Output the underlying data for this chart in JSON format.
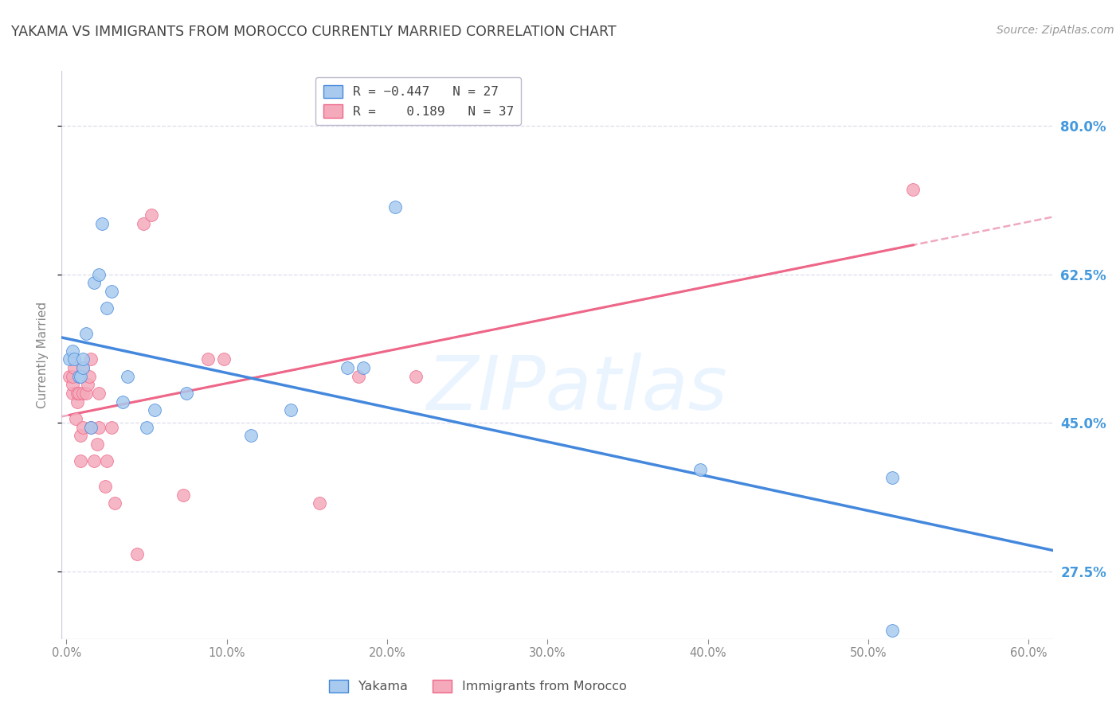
{
  "title": "YAKAMA VS IMMIGRANTS FROM MOROCCO CURRENTLY MARRIED CORRELATION CHART",
  "source": "Source: ZipAtlas.com",
  "ylabel": "Currently Married",
  "ytick_labels": [
    "27.5%",
    "45.0%",
    "62.5%",
    "80.0%"
  ],
  "ytick_vals": [
    0.275,
    0.45,
    0.625,
    0.8
  ],
  "xlim": [
    -0.003,
    0.615
  ],
  "ylim": [
    0.195,
    0.865
  ],
  "watermark": "ZIPatlas",
  "blue_x": [
    0.002,
    0.004,
    0.005,
    0.008,
    0.009,
    0.01,
    0.01,
    0.012,
    0.015,
    0.017,
    0.02,
    0.022,
    0.025,
    0.028,
    0.035,
    0.038,
    0.05,
    0.055,
    0.075,
    0.115,
    0.14,
    0.175,
    0.185,
    0.205,
    0.395,
    0.515,
    0.515
  ],
  "blue_y": [
    0.525,
    0.535,
    0.525,
    0.505,
    0.505,
    0.515,
    0.525,
    0.555,
    0.445,
    0.615,
    0.625,
    0.685,
    0.585,
    0.605,
    0.475,
    0.505,
    0.445,
    0.465,
    0.485,
    0.435,
    0.465,
    0.515,
    0.515,
    0.705,
    0.395,
    0.385,
    0.205
  ],
  "pink_x": [
    0.002,
    0.004,
    0.004,
    0.004,
    0.005,
    0.006,
    0.007,
    0.007,
    0.008,
    0.009,
    0.009,
    0.01,
    0.01,
    0.01,
    0.012,
    0.013,
    0.014,
    0.015,
    0.015,
    0.017,
    0.019,
    0.02,
    0.02,
    0.024,
    0.025,
    0.028,
    0.03,
    0.044,
    0.048,
    0.053,
    0.073,
    0.088,
    0.098,
    0.158,
    0.182,
    0.218,
    0.528
  ],
  "pink_y": [
    0.505,
    0.485,
    0.495,
    0.505,
    0.515,
    0.455,
    0.475,
    0.485,
    0.485,
    0.405,
    0.435,
    0.445,
    0.485,
    0.515,
    0.485,
    0.495,
    0.505,
    0.525,
    0.445,
    0.405,
    0.425,
    0.445,
    0.485,
    0.375,
    0.405,
    0.445,
    0.355,
    0.295,
    0.685,
    0.695,
    0.365,
    0.525,
    0.525,
    0.355,
    0.505,
    0.505,
    0.725
  ],
  "blue_color": "#A8CAEE",
  "pink_color": "#F4AABB",
  "blue_line_color": "#4488DD",
  "pink_line_color": "#EE6688",
  "pink_dash_color": "#EEA0B8",
  "right_axis_color": "#4499DD",
  "grid_color": "#DDDDEE",
  "title_color": "#444444",
  "source_color": "#999999",
  "watermark_color": "#DDEEFF"
}
